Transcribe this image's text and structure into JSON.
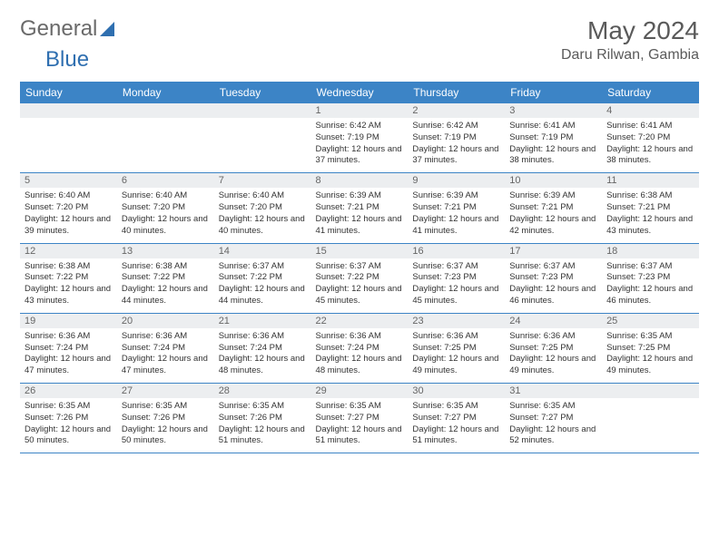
{
  "logo": {
    "text_general": "General",
    "text_blue": "Blue"
  },
  "title": "May 2024",
  "location": "Daru Rilwan, Gambia",
  "colors": {
    "header_bg": "#3c84c6",
    "header_text": "#ffffff",
    "daynum_bg": "#eceef0",
    "body_text": "#333333",
    "border": "#3c84c6",
    "background": "#ffffff"
  },
  "day_names": [
    "Sunday",
    "Monday",
    "Tuesday",
    "Wednesday",
    "Thursday",
    "Friday",
    "Saturday"
  ],
  "weeks": [
    [
      null,
      null,
      null,
      {
        "n": "1",
        "sr": "6:42 AM",
        "ss": "7:19 PM",
        "dl": "12 hours and 37 minutes."
      },
      {
        "n": "2",
        "sr": "6:42 AM",
        "ss": "7:19 PM",
        "dl": "12 hours and 37 minutes."
      },
      {
        "n": "3",
        "sr": "6:41 AM",
        "ss": "7:19 PM",
        "dl": "12 hours and 38 minutes."
      },
      {
        "n": "4",
        "sr": "6:41 AM",
        "ss": "7:20 PM",
        "dl": "12 hours and 38 minutes."
      }
    ],
    [
      {
        "n": "5",
        "sr": "6:40 AM",
        "ss": "7:20 PM",
        "dl": "12 hours and 39 minutes."
      },
      {
        "n": "6",
        "sr": "6:40 AM",
        "ss": "7:20 PM",
        "dl": "12 hours and 40 minutes."
      },
      {
        "n": "7",
        "sr": "6:40 AM",
        "ss": "7:20 PM",
        "dl": "12 hours and 40 minutes."
      },
      {
        "n": "8",
        "sr": "6:39 AM",
        "ss": "7:21 PM",
        "dl": "12 hours and 41 minutes."
      },
      {
        "n": "9",
        "sr": "6:39 AM",
        "ss": "7:21 PM",
        "dl": "12 hours and 41 minutes."
      },
      {
        "n": "10",
        "sr": "6:39 AM",
        "ss": "7:21 PM",
        "dl": "12 hours and 42 minutes."
      },
      {
        "n": "11",
        "sr": "6:38 AM",
        "ss": "7:21 PM",
        "dl": "12 hours and 43 minutes."
      }
    ],
    [
      {
        "n": "12",
        "sr": "6:38 AM",
        "ss": "7:22 PM",
        "dl": "12 hours and 43 minutes."
      },
      {
        "n": "13",
        "sr": "6:38 AM",
        "ss": "7:22 PM",
        "dl": "12 hours and 44 minutes."
      },
      {
        "n": "14",
        "sr": "6:37 AM",
        "ss": "7:22 PM",
        "dl": "12 hours and 44 minutes."
      },
      {
        "n": "15",
        "sr": "6:37 AM",
        "ss": "7:22 PM",
        "dl": "12 hours and 45 minutes."
      },
      {
        "n": "16",
        "sr": "6:37 AM",
        "ss": "7:23 PM",
        "dl": "12 hours and 45 minutes."
      },
      {
        "n": "17",
        "sr": "6:37 AM",
        "ss": "7:23 PM",
        "dl": "12 hours and 46 minutes."
      },
      {
        "n": "18",
        "sr": "6:37 AM",
        "ss": "7:23 PM",
        "dl": "12 hours and 46 minutes."
      }
    ],
    [
      {
        "n": "19",
        "sr": "6:36 AM",
        "ss": "7:24 PM",
        "dl": "12 hours and 47 minutes."
      },
      {
        "n": "20",
        "sr": "6:36 AM",
        "ss": "7:24 PM",
        "dl": "12 hours and 47 minutes."
      },
      {
        "n": "21",
        "sr": "6:36 AM",
        "ss": "7:24 PM",
        "dl": "12 hours and 48 minutes."
      },
      {
        "n": "22",
        "sr": "6:36 AM",
        "ss": "7:24 PM",
        "dl": "12 hours and 48 minutes."
      },
      {
        "n": "23",
        "sr": "6:36 AM",
        "ss": "7:25 PM",
        "dl": "12 hours and 49 minutes."
      },
      {
        "n": "24",
        "sr": "6:36 AM",
        "ss": "7:25 PM",
        "dl": "12 hours and 49 minutes."
      },
      {
        "n": "25",
        "sr": "6:35 AM",
        "ss": "7:25 PM",
        "dl": "12 hours and 49 minutes."
      }
    ],
    [
      {
        "n": "26",
        "sr": "6:35 AM",
        "ss": "7:26 PM",
        "dl": "12 hours and 50 minutes."
      },
      {
        "n": "27",
        "sr": "6:35 AM",
        "ss": "7:26 PM",
        "dl": "12 hours and 50 minutes."
      },
      {
        "n": "28",
        "sr": "6:35 AM",
        "ss": "7:26 PM",
        "dl": "12 hours and 51 minutes."
      },
      {
        "n": "29",
        "sr": "6:35 AM",
        "ss": "7:27 PM",
        "dl": "12 hours and 51 minutes."
      },
      {
        "n": "30",
        "sr": "6:35 AM",
        "ss": "7:27 PM",
        "dl": "12 hours and 51 minutes."
      },
      {
        "n": "31",
        "sr": "6:35 AM",
        "ss": "7:27 PM",
        "dl": "12 hours and 52 minutes."
      },
      null
    ]
  ],
  "labels": {
    "sunrise": "Sunrise:",
    "sunset": "Sunset:",
    "daylight": "Daylight:"
  }
}
